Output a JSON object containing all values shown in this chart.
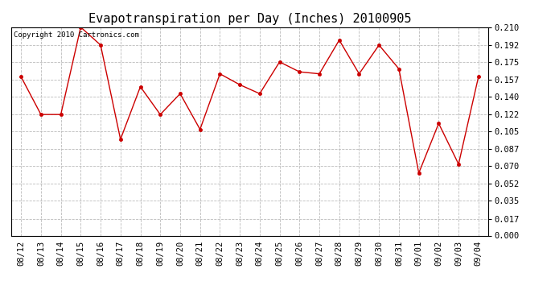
{
  "title": "Evapotranspiration per Day (Inches) 20100905",
  "copyright_text": "Copyright 2010 Cartronics.com",
  "dates": [
    "08/12",
    "08/13",
    "08/14",
    "08/15",
    "08/16",
    "08/17",
    "08/18",
    "08/19",
    "08/20",
    "08/21",
    "08/22",
    "08/23",
    "08/24",
    "08/25",
    "08/26",
    "08/27",
    "08/28",
    "08/29",
    "08/30",
    "08/31",
    "09/01",
    "09/02",
    "09/03",
    "09/04"
  ],
  "values": [
    0.16,
    0.122,
    0.122,
    0.21,
    0.192,
    0.097,
    0.15,
    0.122,
    0.143,
    0.107,
    0.163,
    0.152,
    0.143,
    0.175,
    0.165,
    0.163,
    0.197,
    0.163,
    0.192,
    0.168,
    0.063,
    0.113,
    0.072,
    0.16
  ],
  "line_color": "#cc0000",
  "marker": "o",
  "marker_size": 3,
  "bg_color": "#ffffff",
  "grid_color": "#bbbbbb",
  "ylim": [
    0.0,
    0.21
  ],
  "yticks": [
    0.0,
    0.017,
    0.035,
    0.052,
    0.07,
    0.087,
    0.105,
    0.122,
    0.14,
    0.157,
    0.175,
    0.192,
    0.21
  ],
  "title_fontsize": 11,
  "copyright_fontsize": 6.5,
  "tick_fontsize": 7.5,
  "figwidth": 6.9,
  "figheight": 3.75,
  "dpi": 100
}
